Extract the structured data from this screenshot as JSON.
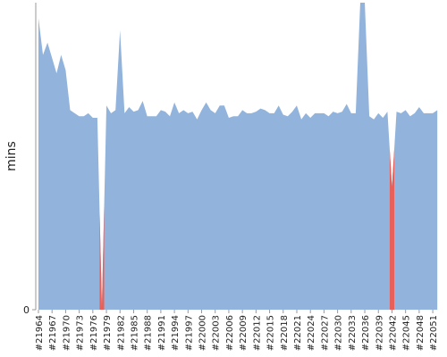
{
  "chart_data": {
    "type": "area",
    "y_label": "mins",
    "categories": [
      "#21964",
      null,
      null,
      "#21967",
      null,
      null,
      "#21970",
      null,
      null,
      "#21973",
      null,
      null,
      "#21976",
      null,
      null,
      "#21979",
      null,
      null,
      "#21982",
      null,
      null,
      "#21985",
      null,
      null,
      "#21988",
      null,
      null,
      "#21991",
      null,
      null,
      "#21994",
      null,
      null,
      "#21997",
      null,
      null,
      "#22000",
      null,
      null,
      "#22003",
      null,
      null,
      "#22006",
      null,
      null,
      "#22009",
      null,
      null,
      "#22012",
      null,
      null,
      "#22015",
      null,
      null,
      "#22018",
      null,
      null,
      "#22021",
      null,
      null,
      "#22024",
      null,
      null,
      "#22027",
      null,
      null,
      "#22030",
      null,
      null,
      "#22033",
      null,
      null,
      "#22036",
      null,
      null,
      "#22039",
      null,
      null,
      "#22042",
      null,
      null,
      "#22045",
      null,
      null,
      "#22048",
      null,
      null,
      "#22051",
      null
    ],
    "series": [
      {
        "color": "#92b4dc",
        "values": [
          95,
          83,
          87,
          82,
          77,
          83,
          78,
          65,
          64,
          63,
          63,
          64,
          62.5,
          62.5,
          1,
          66.5,
          64,
          65,
          91,
          64,
          66,
          64.5,
          65,
          68,
          63,
          63,
          63,
          65,
          64.5,
          63,
          67.5,
          64,
          65,
          64,
          64.5,
          62,
          65,
          67.5,
          65,
          64,
          66.5,
          66.5,
          62.5,
          63,
          63,
          65,
          64,
          64,
          64.5,
          65.5,
          65,
          64,
          64,
          66.5,
          63.5,
          63,
          64.5,
          66.5,
          62,
          64,
          62.5,
          64,
          64,
          64,
          63,
          64.5,
          64,
          64.5,
          67,
          64,
          64,
          100,
          100,
          63,
          62,
          64,
          62.5,
          64.5,
          40,
          64.5,
          64,
          65,
          63,
          64,
          66,
          64,
          64,
          64,
          65
        ]
      },
      {
        "color": "#e8605a",
        "values": [
          null,
          null,
          null,
          null,
          null,
          null,
          null,
          null,
          null,
          null,
          null,
          null,
          null,
          null,
          1,
          null,
          null,
          null,
          null,
          null,
          null,
          null,
          null,
          null,
          null,
          null,
          null,
          null,
          null,
          null,
          null,
          null,
          null,
          null,
          null,
          null,
          null,
          null,
          null,
          null,
          null,
          null,
          null,
          null,
          null,
          null,
          null,
          null,
          null,
          null,
          null,
          null,
          null,
          null,
          null,
          null,
          null,
          null,
          null,
          null,
          null,
          null,
          null,
          null,
          null,
          null,
          null,
          null,
          null,
          null,
          null,
          null,
          null,
          null,
          null,
          null,
          null,
          null,
          40,
          null,
          null,
          null,
          null,
          null,
          null,
          null,
          null,
          null,
          null
        ]
      }
    ],
    "ylim": [
      0,
      100
    ],
    "yticks": [
      0
    ]
  }
}
